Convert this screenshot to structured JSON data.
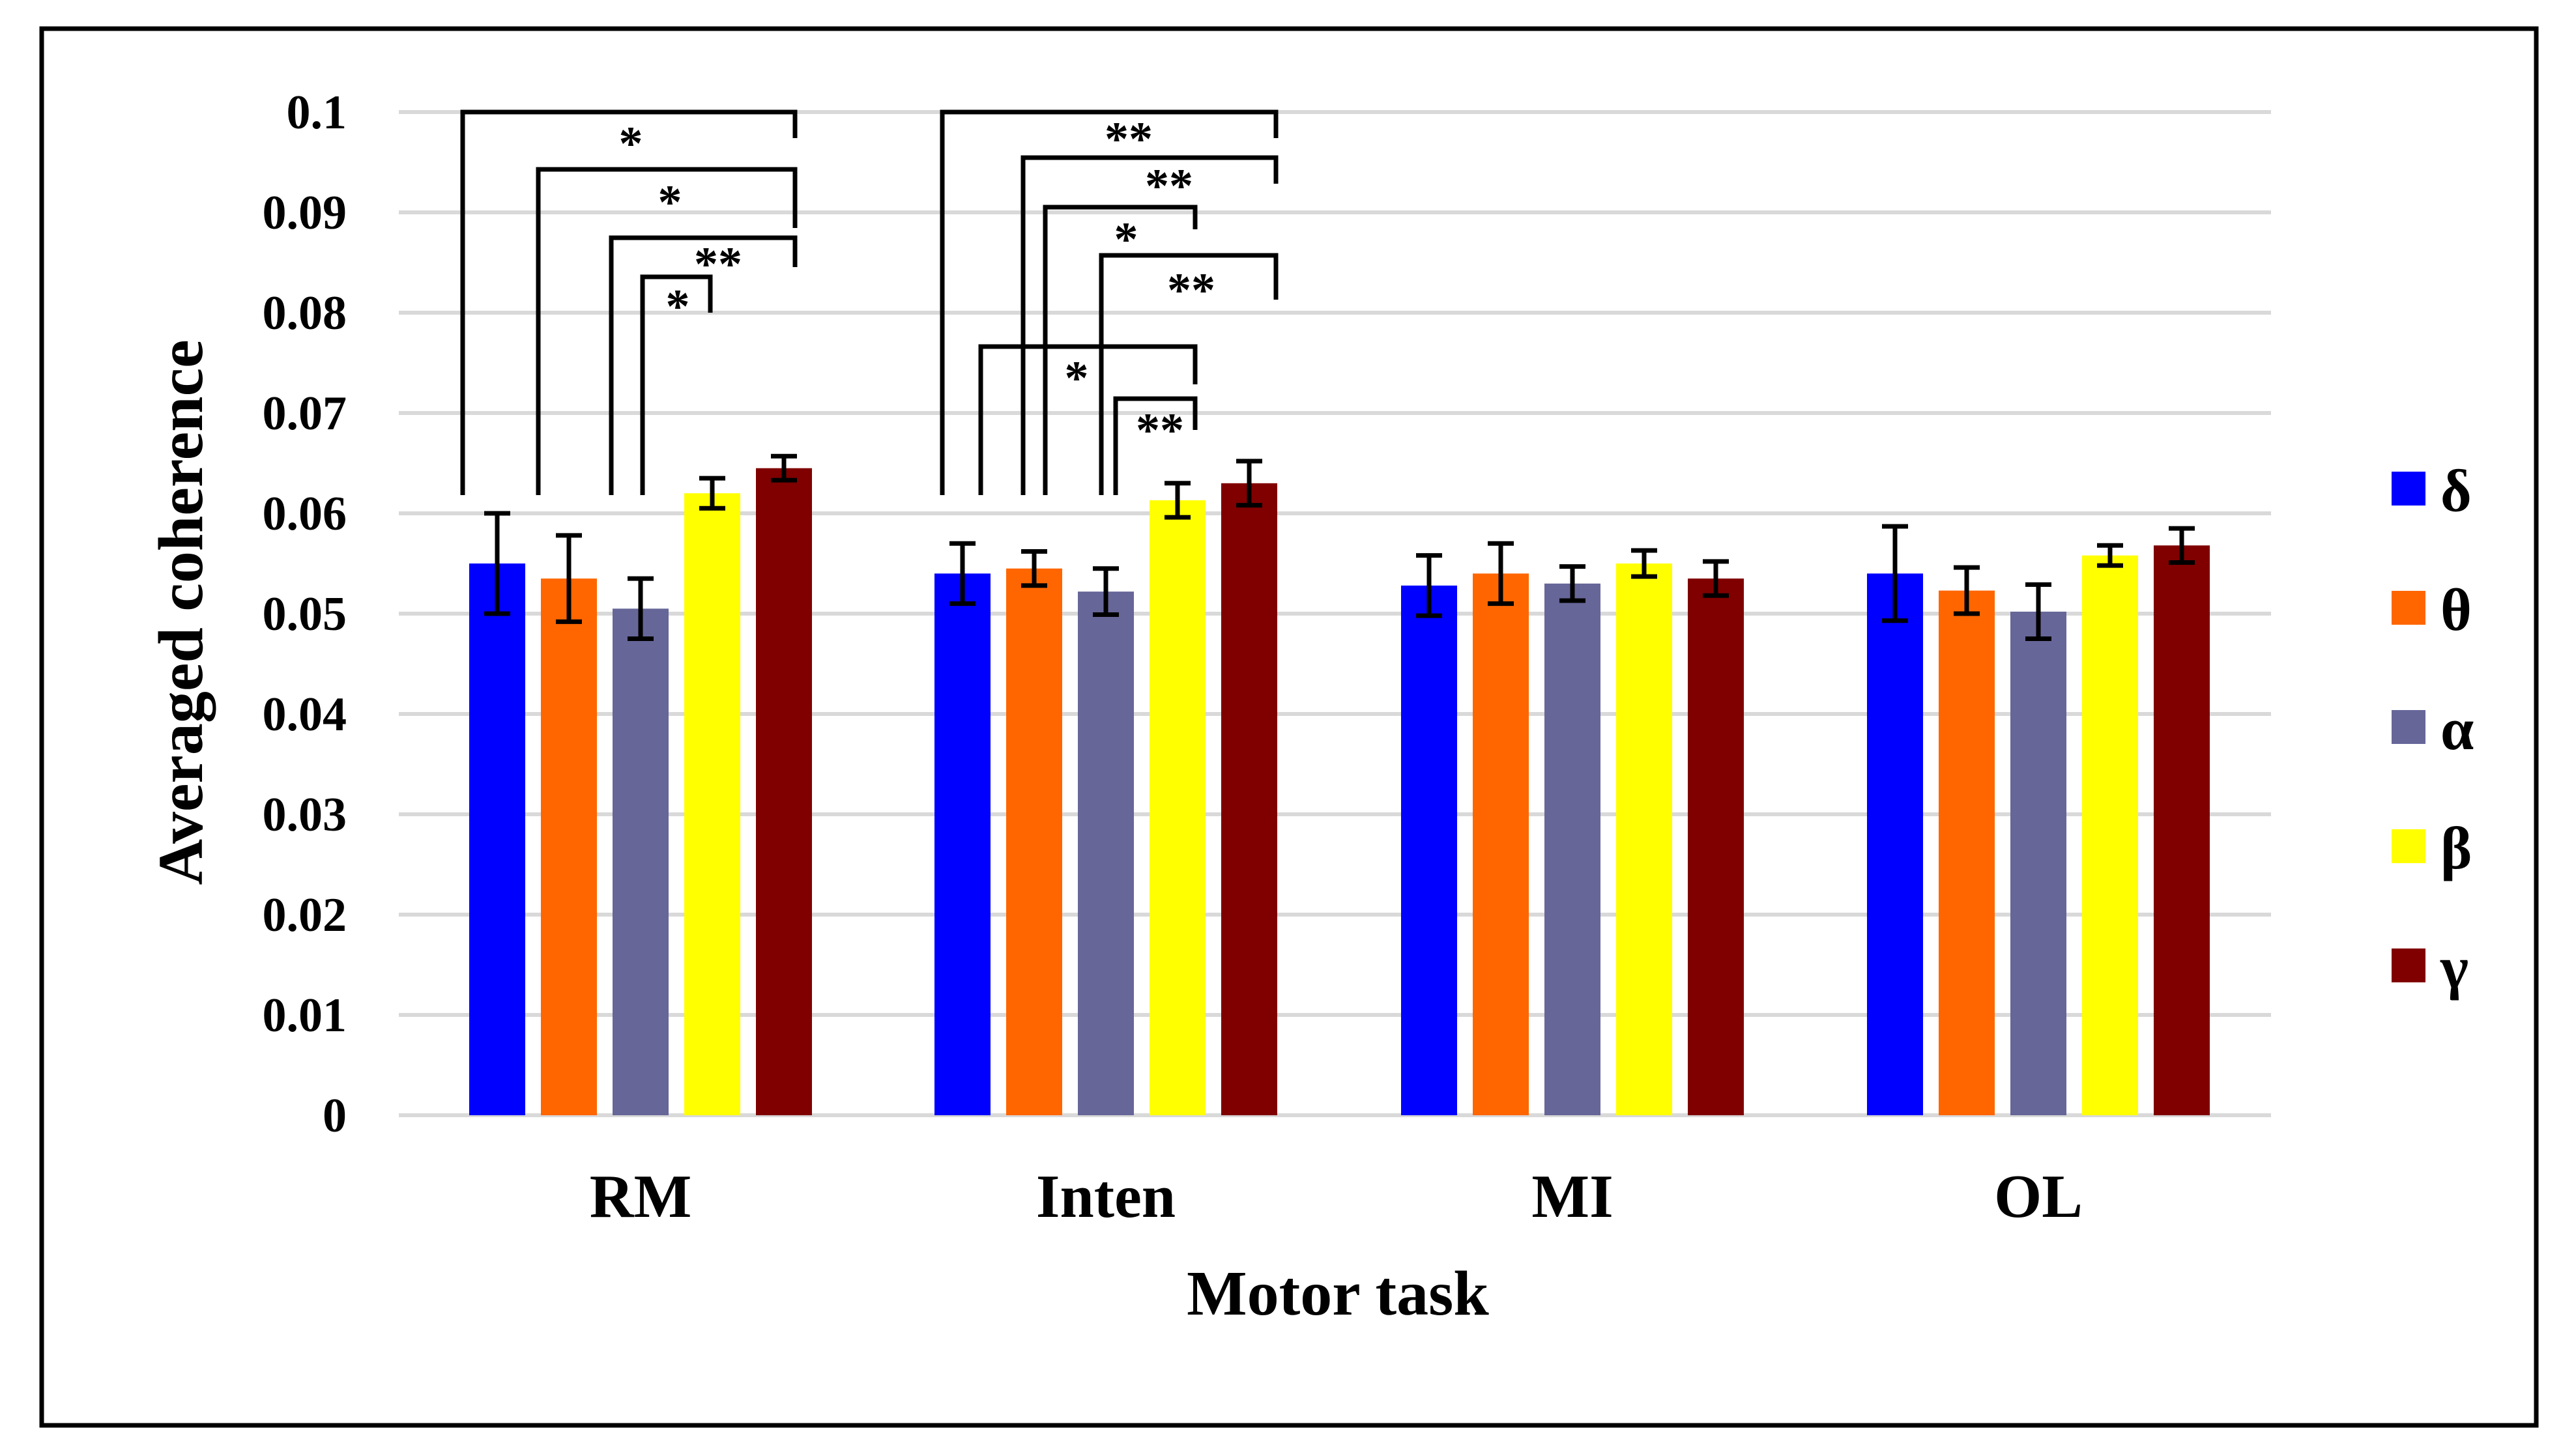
{
  "chart_data": {
    "type": "bar",
    "title": "",
    "xlabel": "Motor task",
    "ylabel": "Averaged coherence",
    "ylim": [
      0,
      0.1
    ],
    "yticks": [
      "0",
      "0.01",
      "0.02",
      "0.03",
      "0.04",
      "0.05",
      "0.06",
      "0.07",
      "0.08",
      "0.09",
      "0.1"
    ],
    "grid": true,
    "legend_position": "right",
    "categories": [
      "RM",
      "Inten",
      "MI",
      "OL"
    ],
    "series": [
      {
        "name": "δ",
        "color": "#0000ff",
        "values": [
          0.055,
          0.054,
          0.0528,
          0.054
        ],
        "errors": [
          0.005,
          0.003,
          0.003,
          0.0047
        ]
      },
      {
        "name": "θ",
        "color": "#ff6600",
        "values": [
          0.0535,
          0.0545,
          0.054,
          0.0523
        ],
        "errors": [
          0.0043,
          0.0017,
          0.003,
          0.0023
        ]
      },
      {
        "name": "α",
        "color": "#666699",
        "values": [
          0.0505,
          0.0522,
          0.053,
          0.0502
        ],
        "errors": [
          0.003,
          0.0023,
          0.0017,
          0.0027
        ]
      },
      {
        "name": "β",
        "color": "#ffff00",
        "values": [
          0.062,
          0.0613,
          0.055,
          0.0558
        ],
        "errors": [
          0.0015,
          0.0017,
          0.0013,
          0.001
        ]
      },
      {
        "name": "γ",
        "color": "#800000",
        "values": [
          0.0645,
          0.063,
          0.0535,
          0.0568
        ],
        "errors": [
          0.0012,
          0.0022,
          0.0017,
          0.0017
        ]
      }
    ],
    "significance": [
      {
        "category": "RM",
        "from": "δ",
        "to": "γ",
        "label": "*"
      },
      {
        "category": "RM",
        "from": "θ",
        "to": "γ",
        "label": "*"
      },
      {
        "category": "RM",
        "from": "α",
        "to": "γ",
        "label": "**"
      },
      {
        "category": "RM",
        "from": "α",
        "to": "β",
        "label": "*"
      },
      {
        "category": "Inten",
        "from": "δ",
        "to": "γ",
        "label": "**"
      },
      {
        "category": "Inten",
        "from": "θ",
        "to": "γ",
        "label": "**"
      },
      {
        "category": "Inten",
        "from": "θ",
        "to": "β",
        "label": "*"
      },
      {
        "category": "Inten",
        "from": "α",
        "to": "γ",
        "label": "**"
      },
      {
        "category": "Inten",
        "from": "δ",
        "to": "β",
        "label": "*"
      },
      {
        "category": "Inten",
        "from": "α",
        "to": "β",
        "label": "**"
      }
    ]
  }
}
